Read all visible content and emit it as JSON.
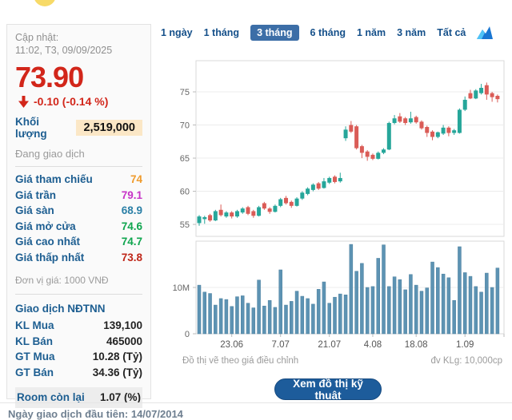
{
  "page": {
    "update_label": "Cập nhật:",
    "update_time": "11:02, T3, 09/09/2025",
    "bottom_cut_note": "Ngày giao dịch đầu tiên: 14/07/2014"
  },
  "quote": {
    "price": "73.90",
    "change": "-0.10 (-0.14 %)",
    "volume_label": "Khối lượng",
    "volume_value": "2,519,000",
    "status": "Đang giao dịch",
    "unit_note": "Đơn vị giá: 1000 VNĐ",
    "price_color": "#d2261a"
  },
  "price_rows": [
    {
      "label": "Giá tham chiếu",
      "value": "74",
      "color": "#ef9b2d"
    },
    {
      "label": "Giá trần",
      "value": "79.1",
      "color": "#c733c7"
    },
    {
      "label": "Giá sàn",
      "value": "68.9",
      "color": "#2a7fa6"
    },
    {
      "label": "Giá mở cửa",
      "value": "74.6",
      "color": "#0ea54e"
    },
    {
      "label": "Giá cao nhất",
      "value": "74.7",
      "color": "#0ea54e"
    },
    {
      "label": "Giá thấp nhất",
      "value": "73.8",
      "color": "#bf2619"
    }
  ],
  "foreign": {
    "title": "Giao dịch NĐTNN",
    "rows": [
      {
        "label": "KL Mua",
        "value": "139,100"
      },
      {
        "label": "KL Bán",
        "value": "465000"
      },
      {
        "label": "GT Mua",
        "value": "10.28 (Tỷ)"
      },
      {
        "label": "GT Bán",
        "value": "34.36 (Tỷ)"
      },
      {
        "label": "Room còn lại",
        "value": "1.07 (%)"
      }
    ]
  },
  "tabs": {
    "active_index": 2,
    "items": [
      {
        "label": "1 ngày"
      },
      {
        "label": "1 tháng"
      },
      {
        "label": "3 tháng"
      },
      {
        "label": "6 tháng"
      },
      {
        "label": "1 năm"
      },
      {
        "label": "3 năm"
      },
      {
        "label": "Tất cả"
      }
    ],
    "icon": "area-chart-icon",
    "active_bg": "#3c6ea7"
  },
  "footer": {
    "left_note": "Đồ thị vẽ theo giá điều chỉnh",
    "right_note": "đv KLg: 10,000cp",
    "button_label": "Xem đồ thị kỹ thuật",
    "button_color": "#1d5c9b"
  },
  "chart_data": {
    "type": "candlestick",
    "subtype": "price-with-volume",
    "price": {
      "ylim": [
        53.2,
        79.7
      ],
      "ticks": [
        {
          "label": "75",
          "value": 75
        },
        {
          "label": "70",
          "value": 70
        },
        {
          "label": "65",
          "value": 65
        },
        {
          "label": "60",
          "value": 60
        },
        {
          "label": "55",
          "value": 55
        }
      ],
      "up_color": "#26a69a",
      "down_color": "#da5c57",
      "grid": true
    },
    "volume": {
      "ylim_m": [
        0,
        20
      ],
      "ticks": [
        {
          "label": "10M",
          "value": 10
        },
        {
          "label": "0",
          "value": 0
        }
      ],
      "bar_color": "#5d93b3",
      "bar_stroke": "#4a7f9e",
      "unit_note": "đv KLg: 10,000cp"
    },
    "x_ticks": [
      {
        "label": "23.06",
        "index": 6
      },
      {
        "label": "7.07",
        "index": 15
      },
      {
        "label": "21.07",
        "index": 24
      },
      {
        "label": "4.08",
        "index": 32
      },
      {
        "label": "18.08",
        "index": 40
      },
      {
        "label": "1.09",
        "index": 49
      }
    ],
    "ohlc": [
      [
        55.2,
        56.4,
        54.8,
        56.2
      ],
      [
        55.8,
        56.3,
        55.1,
        56.1
      ],
      [
        56.4,
        56.6,
        55.4,
        55.6
      ],
      [
        55.6,
        57.2,
        55.5,
        57.0
      ],
      [
        57.2,
        58.0,
        56.2,
        56.4
      ],
      [
        56.2,
        57.0,
        56.0,
        56.8
      ],
      [
        56.8,
        57.0,
        55.9,
        56.2
      ],
      [
        56.2,
        57.2,
        56.0,
        57.0
      ],
      [
        56.8,
        57.6,
        56.6,
        57.4
      ],
      [
        57.6,
        57.8,
        56.4,
        56.6
      ],
      [
        57.0,
        57.2,
        56.0,
        56.3
      ],
      [
        56.3,
        57.8,
        56.2,
        57.6
      ],
      [
        58.2,
        58.4,
        57.2,
        57.4
      ],
      [
        57.4,
        57.6,
        56.6,
        56.9
      ],
      [
        56.9,
        58.0,
        56.8,
        57.8
      ],
      [
        57.8,
        59.0,
        57.6,
        58.8
      ],
      [
        59.0,
        59.3,
        58.0,
        58.2
      ],
      [
        58.4,
        58.6,
        57.5,
        57.8
      ],
      [
        57.8,
        59.1,
        57.7,
        58.9
      ],
      [
        58.9,
        60.0,
        58.7,
        59.8
      ],
      [
        59.6,
        60.6,
        59.4,
        60.4
      ],
      [
        60.2,
        61.2,
        60.0,
        61.0
      ],
      [
        61.2,
        61.4,
        60.2,
        60.4
      ],
      [
        60.5,
        62.0,
        60.4,
        61.5
      ],
      [
        61.3,
        62.2,
        61.1,
        62.0
      ],
      [
        62.2,
        62.4,
        61.2,
        61.4
      ],
      [
        61.5,
        62.8,
        61.3,
        62.0
      ],
      [
        68.0,
        69.8,
        67.6,
        69.3
      ],
      [
        70.0,
        70.6,
        68.8,
        69.0
      ],
      [
        69.8,
        70.0,
        66.3,
        66.5
      ],
      [
        66.8,
        67.0,
        65.0,
        65.8
      ],
      [
        66.0,
        66.2,
        64.6,
        65.2
      ],
      [
        65.5,
        65.7,
        64.7,
        64.9
      ],
      [
        64.9,
        66.0,
        64.8,
        65.8
      ],
      [
        65.8,
        66.5,
        65.6,
        66.3
      ],
      [
        66.3,
        70.5,
        66.2,
        70.3
      ],
      [
        70.3,
        71.5,
        70.1,
        71.0
      ],
      [
        71.3,
        71.8,
        70.3,
        70.5
      ],
      [
        71.0,
        71.2,
        70.0,
        70.3
      ],
      [
        70.4,
        72.0,
        70.2,
        71.0
      ],
      [
        71.2,
        71.4,
        70.2,
        70.4
      ],
      [
        70.5,
        70.7,
        69.3,
        69.5
      ],
      [
        69.7,
        69.9,
        68.2,
        68.8
      ],
      [
        69.0,
        69.2,
        67.7,
        68.2
      ],
      [
        68.2,
        69.0,
        68.0,
        68.9
      ],
      [
        68.7,
        70.0,
        68.5,
        69.6
      ],
      [
        69.6,
        69.8,
        68.3,
        68.8
      ],
      [
        68.8,
        69.4,
        68.5,
        69.2
      ],
      [
        68.8,
        72.5,
        68.7,
        72.3
      ],
      [
        72.3,
        74.3,
        72.1,
        73.8
      ],
      [
        74.8,
        75.3,
        73.9,
        74.0
      ],
      [
        74.0,
        75.4,
        73.9,
        75.2
      ],
      [
        74.8,
        76.2,
        74.6,
        75.6
      ],
      [
        76.0,
        76.4,
        73.8,
        74.6
      ],
      [
        74.8,
        75.0,
        73.5,
        74.2
      ],
      [
        74.4,
        74.6,
        73.4,
        73.9
      ]
    ],
    "volumes_m": [
      10.5,
      9,
      8.7,
      6.2,
      7.6,
      7.4,
      5.9,
      8,
      8.2,
      6.6,
      5.6,
      11.6,
      6,
      7.2,
      5.7,
      13.8,
      6.2,
      7,
      9.2,
      8.1,
      7.6,
      6.4,
      9.6,
      11.2,
      6.6,
      7.9,
      8.6,
      8.4,
      19.3,
      13.5,
      15.2,
      10,
      10.2,
      16.3,
      19.2,
      10.2,
      12.3,
      11.7,
      9.5,
      12.8,
      10.5,
      9.2,
      9.9,
      15.5,
      14.3,
      12.9,
      12.1,
      7.2,
      18.8,
      13.2,
      12.4,
      10.2,
      9,
      13.1,
      10,
      14.2
    ]
  }
}
